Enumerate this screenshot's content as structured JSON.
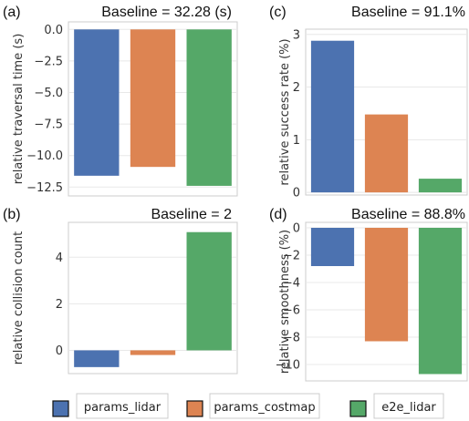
{
  "colors": {
    "params_lidar": "#4c72b0",
    "params_costmap": "#dd8452",
    "e2e_lidar": "#55a868"
  },
  "legend": [
    "params_lidar",
    "params_costmap",
    "e2e_lidar"
  ],
  "chart_data": [
    {
      "type": "bar",
      "panel": "(a)",
      "title": "Baseline = 32.28 (s)",
      "ylabel": "relative traversal time (s)",
      "categories": [
        "params_lidar",
        "params_costmap",
        "e2e_lidar"
      ],
      "values": [
        -11.6,
        -10.9,
        -12.4
      ],
      "ylim": [
        -13.2,
        0.6
      ],
      "yticks": [
        0.0,
        -2.5,
        -5.0,
        -7.5,
        -10.0,
        -12.5
      ],
      "ytick_labels": [
        "0.0",
        "−2.5",
        "−5.0",
        "−7.5",
        "−10.0",
        "−12.5"
      ],
      "grid": true
    },
    {
      "type": "bar",
      "panel": "(c)",
      "title": "Baseline = 91.1%",
      "ylabel": "relative success rate (%)",
      "categories": [
        "params_lidar",
        "params_costmap",
        "e2e_lidar"
      ],
      "values": [
        2.88,
        1.48,
        0.26
      ],
      "ylim": [
        -0.05,
        3.1
      ],
      "yticks": [
        0,
        1,
        2,
        3
      ],
      "ytick_labels": [
        "0",
        "1",
        "2",
        "3"
      ],
      "grid": true
    },
    {
      "type": "bar",
      "panel": "(b)",
      "title": "Baseline = 2",
      "ylabel": "relative collision count",
      "categories": [
        "params_lidar",
        "params_costmap",
        "e2e_lidar"
      ],
      "values": [
        -0.72,
        -0.2,
        5.08
      ],
      "ylim": [
        -1.0,
        5.5
      ],
      "yticks": [
        0,
        2,
        4
      ],
      "ytick_labels": [
        "0",
        "2",
        "4"
      ],
      "grid": true
    },
    {
      "type": "bar",
      "panel": "(d)",
      "title": "Baseline = 88.8%",
      "ylabel": "relative smoothness (%)",
      "categories": [
        "params_lidar",
        "params_costmap",
        "e2e_lidar"
      ],
      "values": [
        -2.8,
        -8.3,
        -10.7
      ],
      "ylim": [
        -11.2,
        0.4
      ],
      "yticks": [
        0,
        -2,
        -4,
        -6,
        -8,
        -10
      ],
      "ytick_labels": [
        "0",
        "−2",
        "−4",
        "−6",
        "−8",
        "−10"
      ],
      "grid": true
    }
  ]
}
